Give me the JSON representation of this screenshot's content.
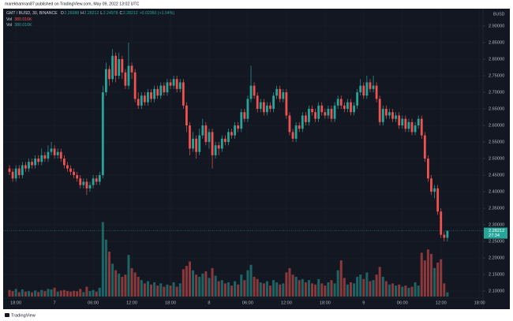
{
  "published": "marekhamran87 published on TradingView.com, May 09, 2022 13:02 UTC",
  "footer": "TradingView",
  "chart_data": {
    "type": "candlestick",
    "symbol": "GMT / BUSD, 30, BINANCE",
    "ohlc_labels": [
      "O",
      "H",
      "L",
      "C"
    ],
    "change": "+0.02360 (+1.04%)",
    "volume_legends": [
      {
        "label": "Vol",
        "value": "380.016K"
      },
      {
        "label": "Vol",
        "value": "380.016K"
      }
    ],
    "currency": "BUSD",
    "countdown": "27:34",
    "up_color": "#26a69a",
    "down_color": "#ef5350",
    "ylim": [
      2.074,
      2.95
    ],
    "yticks": [
      {
        "value": 2.1,
        "label": "2.10000"
      },
      {
        "value": 2.15,
        "label": "2.15000"
      },
      {
        "value": 2.2,
        "label": "2.20000"
      },
      {
        "value": 2.25,
        "label": "2.25000"
      },
      {
        "value": 2.3,
        "label": "2.30000"
      },
      {
        "value": 2.35,
        "label": "2.35000"
      },
      {
        "value": 2.4,
        "label": "2.40000"
      },
      {
        "value": 2.45,
        "label": "2.45000"
      },
      {
        "value": 2.5,
        "label": "2.50000"
      },
      {
        "value": 2.55,
        "label": "2.55000"
      },
      {
        "value": 2.6,
        "label": "2.60000"
      },
      {
        "value": 2.65,
        "label": "2.65000"
      },
      {
        "value": 2.7,
        "label": "2.70000"
      },
      {
        "value": 2.75,
        "label": "2.75000"
      },
      {
        "value": 2.8,
        "label": "2.80000"
      },
      {
        "value": 2.85,
        "label": "2.85000"
      },
      {
        "value": 2.9,
        "label": "2.90000"
      }
    ],
    "xtick_labels": [
      "18:00",
      "7",
      "06:00",
      "12:00",
      "18:00",
      "8",
      "06:00",
      "12:00",
      "18:00",
      "9",
      "06:00",
      "12:00",
      "18:00"
    ],
    "grid": true,
    "volume_lim": [
      0,
      7200
    ],
    "open": [
      2.47,
      2.46,
      2.44,
      2.47,
      2.45,
      2.48,
      2.47,
      2.49,
      2.48,
      2.5,
      2.49,
      2.51,
      2.5,
      2.52,
      2.53,
      2.51,
      2.52,
      2.5,
      2.48,
      2.47,
      2.46,
      2.45,
      2.44,
      2.42,
      2.43,
      2.41,
      2.42,
      2.44,
      2.43,
      2.45,
      2.7,
      2.77,
      2.74,
      2.81,
      2.75,
      2.8,
      2.76,
      2.72,
      2.78,
      2.76,
      2.68,
      2.66,
      2.69,
      2.67,
      2.7,
      2.68,
      2.71,
      2.69,
      2.72,
      2.7,
      2.73,
      2.72,
      2.74,
      2.71,
      2.73,
      2.66,
      2.6,
      2.53,
      2.56,
      2.52,
      2.57,
      2.6,
      2.55,
      2.58,
      2.51,
      2.54,
      2.53,
      2.56,
      2.55,
      2.58,
      2.57,
      2.6,
      2.59,
      2.64,
      2.62,
      2.68,
      2.72,
      2.69,
      2.65,
      2.67,
      2.64,
      2.66,
      2.65,
      2.69,
      2.71,
      2.68,
      2.7,
      2.63,
      2.58,
      2.56,
      2.6,
      2.59,
      2.63,
      2.61,
      2.65,
      2.64,
      2.62,
      2.66,
      2.64,
      2.63,
      2.65,
      2.62,
      2.66,
      2.68,
      2.66,
      2.65,
      2.67,
      2.64,
      2.66,
      2.7,
      2.72,
      2.69,
      2.73,
      2.71,
      2.72,
      2.68,
      2.61,
      2.65,
      2.63,
      2.64,
      2.62,
      2.63,
      2.6,
      2.62,
      2.59,
      2.61,
      2.58,
      2.6,
      2.62,
      2.57,
      2.5,
      2.44,
      2.4,
      2.41,
      2.34,
      2.27,
      2.26088
    ],
    "high": [
      2.48,
      2.47,
      2.48,
      2.48,
      2.49,
      2.49,
      2.5,
      2.5,
      2.51,
      2.51,
      2.53,
      2.52,
      2.54,
      2.55,
      2.54,
      2.53,
      2.53,
      2.51,
      2.49,
      2.48,
      2.47,
      2.46,
      2.45,
      2.44,
      2.44,
      2.43,
      2.45,
      2.45,
      2.46,
      2.72,
      2.79,
      2.78,
      2.83,
      2.82,
      2.82,
      2.81,
      2.77,
      2.85,
      2.79,
      2.77,
      2.7,
      2.7,
      2.7,
      2.71,
      2.71,
      2.72,
      2.72,
      2.73,
      2.73,
      2.74,
      2.74,
      2.75,
      2.75,
      2.74,
      2.74,
      2.67,
      2.61,
      2.58,
      2.57,
      2.59,
      2.62,
      2.61,
      2.59,
      2.59,
      2.55,
      2.55,
      2.57,
      2.57,
      2.59,
      2.59,
      2.61,
      2.61,
      2.65,
      2.65,
      2.69,
      2.78,
      2.73,
      2.7,
      2.68,
      2.68,
      2.67,
      2.67,
      2.7,
      2.72,
      2.72,
      2.71,
      2.71,
      2.64,
      2.59,
      2.61,
      2.61,
      2.64,
      2.64,
      2.66,
      2.66,
      2.65,
      2.67,
      2.67,
      2.65,
      2.66,
      2.66,
      2.67,
      2.69,
      2.69,
      2.67,
      2.68,
      2.68,
      2.67,
      2.71,
      2.74,
      2.73,
      2.75,
      2.74,
      2.75,
      2.73,
      2.69,
      2.66,
      2.66,
      2.65,
      2.65,
      2.64,
      2.64,
      2.63,
      2.63,
      2.62,
      2.62,
      2.61,
      2.63,
      2.63,
      2.58,
      2.51,
      2.45,
      2.42,
      2.42,
      2.35,
      2.28,
      2.28212
    ],
    "low": [
      2.45,
      2.43,
      2.43,
      2.44,
      2.44,
      2.46,
      2.46,
      2.47,
      2.47,
      2.48,
      2.48,
      2.49,
      2.49,
      2.51,
      2.5,
      2.5,
      2.49,
      2.47,
      2.46,
      2.45,
      2.44,
      2.43,
      2.41,
      2.41,
      2.39,
      2.4,
      2.41,
      2.42,
      2.42,
      2.44,
      2.69,
      2.72,
      2.73,
      2.73,
      2.74,
      2.74,
      2.71,
      2.71,
      2.74,
      2.67,
      2.65,
      2.65,
      2.66,
      2.66,
      2.67,
      2.67,
      2.68,
      2.68,
      2.69,
      2.69,
      2.71,
      2.71,
      2.7,
      2.7,
      2.65,
      2.58,
      2.51,
      2.52,
      2.5,
      2.51,
      2.56,
      2.54,
      2.53,
      2.47,
      2.5,
      2.51,
      2.52,
      2.54,
      2.54,
      2.56,
      2.56,
      2.58,
      2.58,
      2.61,
      2.61,
      2.67,
      2.68,
      2.64,
      2.64,
      2.63,
      2.63,
      2.64,
      2.64,
      2.68,
      2.67,
      2.67,
      2.62,
      2.57,
      2.55,
      2.55,
      2.58,
      2.58,
      2.6,
      2.6,
      2.63,
      2.61,
      2.61,
      2.63,
      2.62,
      2.62,
      2.61,
      2.61,
      2.65,
      2.65,
      2.64,
      2.64,
      2.63,
      2.63,
      2.65,
      2.69,
      2.68,
      2.68,
      2.7,
      2.7,
      2.67,
      2.6,
      2.6,
      2.62,
      2.62,
      2.61,
      2.61,
      2.59,
      2.59,
      2.58,
      2.58,
      2.57,
      2.57,
      2.59,
      2.56,
      2.49,
      2.43,
      2.39,
      2.38,
      2.33,
      2.26,
      2.25,
      2.24978
    ],
    "close": [
      2.46,
      2.44,
      2.47,
      2.45,
      2.48,
      2.47,
      2.49,
      2.48,
      2.5,
      2.49,
      2.51,
      2.5,
      2.52,
      2.53,
      2.51,
      2.52,
      2.5,
      2.48,
      2.47,
      2.46,
      2.45,
      2.44,
      2.42,
      2.43,
      2.41,
      2.42,
      2.44,
      2.43,
      2.45,
      2.7,
      2.77,
      2.74,
      2.81,
      2.75,
      2.8,
      2.76,
      2.72,
      2.78,
      2.76,
      2.68,
      2.66,
      2.69,
      2.67,
      2.7,
      2.68,
      2.71,
      2.69,
      2.72,
      2.7,
      2.73,
      2.72,
      2.74,
      2.71,
      2.73,
      2.66,
      2.6,
      2.53,
      2.56,
      2.52,
      2.57,
      2.6,
      2.55,
      2.58,
      2.51,
      2.54,
      2.53,
      2.56,
      2.55,
      2.58,
      2.57,
      2.6,
      2.59,
      2.64,
      2.62,
      2.68,
      2.72,
      2.69,
      2.65,
      2.67,
      2.64,
      2.66,
      2.65,
      2.69,
      2.71,
      2.68,
      2.7,
      2.63,
      2.58,
      2.56,
      2.6,
      2.59,
      2.63,
      2.61,
      2.65,
      2.64,
      2.62,
      2.66,
      2.64,
      2.63,
      2.65,
      2.62,
      2.66,
      2.68,
      2.66,
      2.65,
      2.67,
      2.64,
      2.66,
      2.7,
      2.72,
      2.69,
      2.73,
      2.71,
      2.72,
      2.68,
      2.61,
      2.65,
      2.63,
      2.64,
      2.62,
      2.63,
      2.6,
      2.62,
      2.59,
      2.61,
      2.58,
      2.6,
      2.62,
      2.57,
      2.5,
      2.44,
      2.4,
      2.41,
      2.34,
      2.27,
      2.26088,
      2.28212
    ],
    "volume": [
      600,
      500,
      700,
      400,
      650,
      450,
      500,
      380,
      550,
      420,
      600,
      500,
      700,
      650,
      800,
      450,
      550,
      600,
      500,
      450,
      520,
      480,
      700,
      400,
      900,
      500,
      600,
      450,
      800,
      6800,
      5200,
      4100,
      3000,
      2400,
      2100,
      1800,
      2000,
      3800,
      2600,
      2200,
      1800,
      1500,
      1200,
      1400,
      1100,
      1300,
      1000,
      1200,
      900,
      1100,
      1000,
      1300,
      900,
      1200,
      2500,
      2800,
      3200,
      2400,
      2000,
      1800,
      2100,
      2300,
      1700,
      2600,
      1900,
      1400,
      1500,
      1200,
      1300,
      1000,
      1400,
      1100,
      2000,
      1500,
      2400,
      2900,
      1800,
      1600,
      1300,
      1200,
      1400,
      1000,
      1500,
      1300,
      1100,
      1200,
      2200,
      2600,
      2000,
      1800,
      1500,
      1600,
      1300,
      1500,
      1200,
      1100,
      1600,
      1200,
      1000,
      1300,
      1500,
      1200,
      2400,
      3300,
      1700,
      1100,
      1300,
      1200,
      1800,
      2000,
      1600,
      2200,
      1400,
      1500,
      2000,
      2700,
      1800,
      1400,
      1100,
      1200,
      1000,
      1100,
      900,
      1000,
      800,
      900,
      1300,
      1000,
      4000,
      3300,
      4300,
      3900,
      2600,
      3100,
      3400,
      1200,
      380.016
    ]
  }
}
